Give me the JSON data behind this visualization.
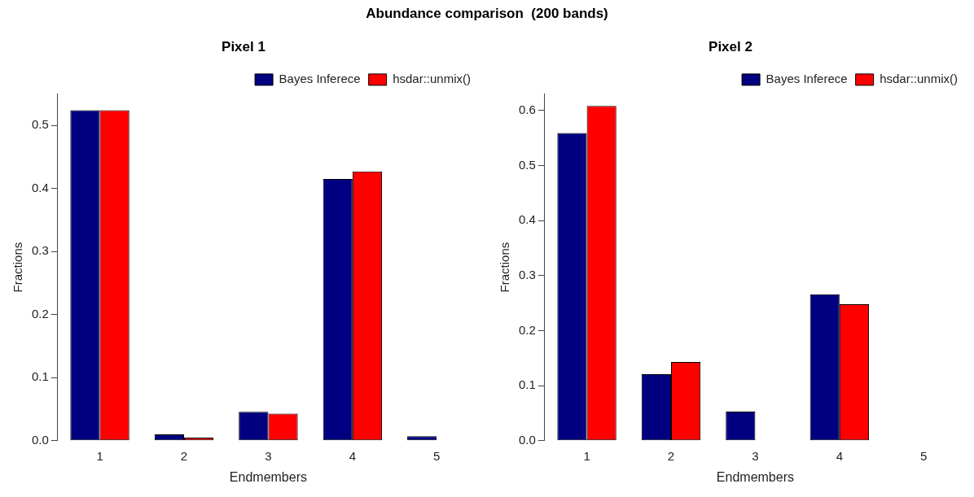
{
  "chart_data": [
    {
      "type": "other",
      "title": "Abundance comparison  (200 bands)"
    },
    {
      "type": "bar",
      "title": "Pixel 1",
      "xlabel": "Endmembers",
      "ylabel": "Fractions",
      "categories": [
        "1",
        "2",
        "3",
        "4",
        "5"
      ],
      "series": [
        {
          "name": "Bayes Inferece",
          "color": "#000080",
          "values": [
            0.524,
            0.01,
            0.046,
            0.415,
            0.007
          ]
        },
        {
          "name": "hsdar::unmix()",
          "color": "#ff0000",
          "values": [
            0.524,
            0.005,
            0.043,
            0.427,
            0.0
          ]
        }
      ],
      "ylim": [
        0,
        0.55
      ],
      "yticks": [
        {
          "value": 0,
          "label": "0.0"
        },
        0.1,
        0.2,
        0.3,
        0.4,
        0.5
      ],
      "grid": false,
      "legend": "top right"
    },
    {
      "type": "bar",
      "title": "Pixel 2",
      "xlabel": "Endmembers",
      "ylabel": "Fractions",
      "categories": [
        "1",
        "2",
        "3",
        "4",
        "5"
      ],
      "series": [
        {
          "name": "Bayes Inferece",
          "color": "#000080",
          "values": [
            0.559,
            0.121,
            0.053,
            0.266,
            0.0
          ]
        },
        {
          "name": "hsdar::unmix()",
          "color": "#ff0000",
          "values": [
            0.608,
            0.143,
            0.0,
            0.248,
            0.0
          ]
        }
      ],
      "ylim": [
        0,
        0.63
      ],
      "yticks": [
        {
          "value": 0,
          "label": "0.0"
        },
        0.1,
        0.2,
        0.3,
        0.4,
        0.5,
        0.6
      ],
      "grid": false,
      "legend": "top right"
    }
  ]
}
